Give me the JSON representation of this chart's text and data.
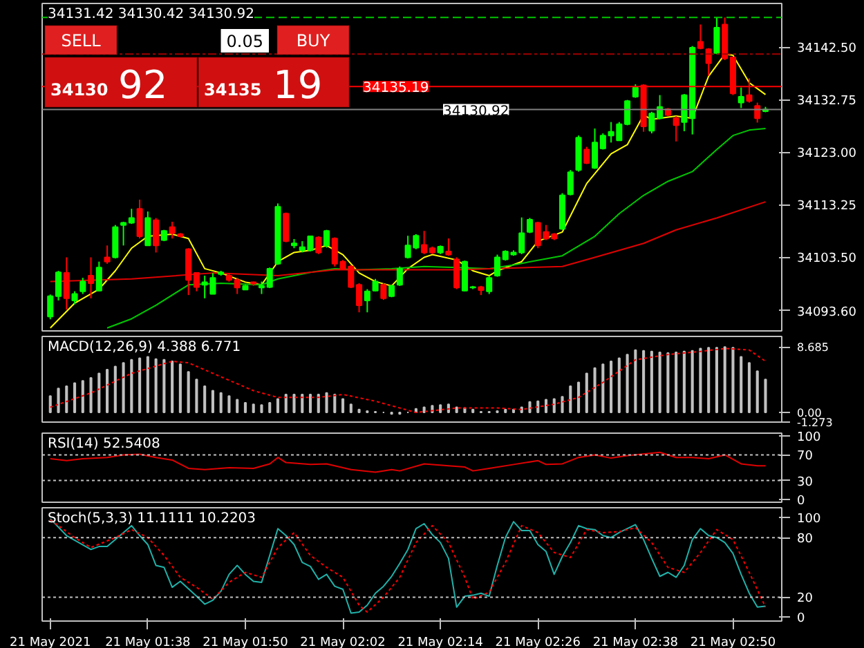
{
  "chart_data": [
    {
      "type": "candlestick",
      "title": "34131.42 34130.42 34130.92",
      "colors": [
        "#00ff00",
        "#00ff00",
        "#ff0000",
        "#00ff00",
        "#00ff00",
        "#ff0000",
        "#00ff00",
        "#ff0000",
        "#00ff00",
        "#00ff00",
        "#00ff00",
        "#ff0000",
        "#00ff00",
        "#ff0000",
        "#00ff00",
        "#ff0000",
        "#ff0000",
        "#ff0000",
        "#ff0000",
        "#00ff00",
        "#00ff00",
        "#00ff00",
        "#ff0000",
        "#ff0000",
        "#00ff00",
        "#ff0000",
        "#00ff00",
        "#00ff00",
        "#00ff00",
        "#ff0000",
        "#00ff00",
        "#00ff00",
        "#00ff00",
        "#ff0000",
        "#00ff00",
        "#ff0000",
        "#ff0000",
        "#ff0000",
        "#ff0000",
        "#00ff00",
        "#00ff00",
        "#ff0000",
        "#00ff00",
        "#00ff00",
        "#00ff00",
        "#00ff00",
        "#ff0000",
        "#ff0000",
        "#00ff00",
        "#ff0000",
        "#ff0000",
        "#00ff00",
        "#00ff00",
        "#ff0000",
        "#00ff00",
        "#00ff00",
        "#00ff00",
        "#00ff00",
        "#00ff00",
        "#00ff00",
        "#ff0000",
        "#ff0000",
        "#ff0000",
        "#00ff00",
        "#00ff00",
        "#00ff00",
        "#ff0000",
        "#00ff00",
        "#00ff00",
        "#00ff00",
        "#00ff00",
        "#00ff00",
        "#00ff00",
        "#ff0000",
        "#00ff00",
        "#00ff00",
        "#ff0000",
        "#ff0000",
        "#00ff00",
        "#00ff00",
        "#ff0000",
        "#ff0000",
        "#00ff00",
        "#ff0000",
        "#ff0000",
        "#00ff00",
        "#ff0000",
        "#ff0000",
        "#00ff00"
      ],
      "x": [
        "2021-05-21T01:26",
        "2021-05-21T01:27",
        "2021-05-21T01:28",
        "2021-05-21T01:29",
        "2021-05-21T01:30",
        "2021-05-21T01:31",
        "2021-05-21T01:32",
        "2021-05-21T01:33",
        "2021-05-21T01:34",
        "2021-05-21T01:35",
        "2021-05-21T01:36",
        "2021-05-21T01:37",
        "2021-05-21T01:38",
        "2021-05-21T01:39",
        "2021-05-21T01:40",
        "2021-05-21T01:41",
        "2021-05-21T01:42",
        "2021-05-21T01:43",
        "2021-05-21T01:44",
        "2021-05-21T01:45",
        "2021-05-21T01:46",
        "2021-05-21T01:47",
        "2021-05-21T01:48",
        "2021-05-21T01:49",
        "2021-05-21T01:50",
        "2021-05-21T01:51",
        "2021-05-21T01:52",
        "2021-05-21T01:53",
        "2021-05-21T01:54",
        "2021-05-21T01:55",
        "2021-05-21T01:56",
        "2021-05-21T01:57",
        "2021-05-21T01:58",
        "2021-05-21T01:59",
        "2021-05-21T02:00",
        "2021-05-21T02:01",
        "2021-05-21T02:02",
        "2021-05-21T02:03",
        "2021-05-21T02:04",
        "2021-05-21T02:05",
        "2021-05-21T02:06",
        "2021-05-21T02:07",
        "2021-05-21T02:08",
        "2021-05-21T02:09",
        "2021-05-21T02:10",
        "2021-05-21T02:11",
        "2021-05-21T02:12",
        "2021-05-21T02:13",
        "2021-05-21T02:14",
        "2021-05-21T02:15",
        "2021-05-21T02:16",
        "2021-05-21T02:17",
        "2021-05-21T02:18",
        "2021-05-21T02:19",
        "2021-05-21T02:20",
        "2021-05-21T02:21",
        "2021-05-21T02:22",
        "2021-05-21T02:23",
        "2021-05-21T02:24",
        "2021-05-21T02:25",
        "2021-05-21T02:26",
        "2021-05-21T02:27",
        "2021-05-21T02:28",
        "2021-05-21T02:29",
        "2021-05-21T02:30",
        "2021-05-21T02:31",
        "2021-05-21T02:32",
        "2021-05-21T02:33",
        "2021-05-21T02:34",
        "2021-05-21T02:35",
        "2021-05-21T02:36",
        "2021-05-21T02:37",
        "2021-05-21T02:38",
        "2021-05-21T02:39",
        "2021-05-21T02:40",
        "2021-05-21T02:41",
        "2021-05-21T02:42",
        "2021-05-21T02:43",
        "2021-05-21T02:44",
        "2021-05-21T02:45",
        "2021-05-21T02:46",
        "2021-05-21T02:47",
        "2021-05-21T02:48",
        "2021-05-21T02:49",
        "2021-05-21T02:50",
        "2021-05-21T02:51",
        "2021-05-21T02:52",
        "2021-05-21T02:53",
        "2021-05-21T02:54"
      ],
      "ohlc": [
        [
          34092.5,
          34096.6,
          34092.0,
          34096.3
        ],
        [
          34096.3,
          34101.0,
          34095.5,
          34100.7
        ],
        [
          34100.6,
          34103.5,
          34093.8,
          34095.9
        ],
        [
          34095.5,
          34097.2,
          34094.8,
          34096.7
        ],
        [
          34097.2,
          34099.7,
          34096.7,
          34099.0
        ],
        [
          34100.1,
          34103.5,
          34095.9,
          34098.7
        ],
        [
          34097.3,
          34102.7,
          34097.2,
          34101.6
        ],
        [
          34103.5,
          34105.7,
          34102.3,
          34102.7
        ],
        [
          34103.5,
          34109.5,
          34103.3,
          34109.1
        ],
        [
          34109.5,
          34110.1,
          34105.7,
          34109.9
        ],
        [
          34109.9,
          34112.5,
          34109.7,
          34110.8
        ],
        [
          34112.5,
          34114.2,
          34107.0,
          34107.4
        ],
        [
          34105.7,
          34112.0,
          34105.7,
          34110.8
        ],
        [
          34110.4,
          34110.8,
          34104.4,
          34105.7
        ],
        [
          34106.7,
          34108.6,
          34106.5,
          34108.4
        ],
        [
          34109.1,
          34110.1,
          34107.0,
          34108.0
        ],
        [
          34107.8,
          34108.0,
          34107.2,
          34107.4
        ],
        [
          34105.0,
          34105.2,
          34096.5,
          34099.3
        ],
        [
          34100.6,
          34100.7,
          34097.2,
          34098.0
        ],
        [
          34098.4,
          34100.1,
          34095.9,
          34098.9
        ],
        [
          34096.7,
          34100.6,
          34096.7,
          34099.7
        ],
        [
          34100.4,
          34101.0,
          34100.1,
          34100.7
        ],
        [
          34100.1,
          34100.6,
          34099.0,
          34099.3
        ],
        [
          34099.3,
          34099.7,
          34096.7,
          34097.9
        ],
        [
          34097.5,
          34098.4,
          34097.5,
          34098.2
        ],
        [
          34098.9,
          34099.0,
          34098.2,
          34098.6
        ],
        [
          34097.9,
          34099.0,
          34096.7,
          34098.2
        ],
        [
          34098.0,
          34101.6,
          34097.8,
          34101.4
        ],
        [
          34102.3,
          34113.5,
          34102.1,
          34112.9
        ],
        [
          34111.6,
          34111.8,
          34106.3,
          34106.5
        ],
        [
          34105.7,
          34106.9,
          34105.2,
          34106.1
        ],
        [
          34104.8,
          34106.5,
          34104.4,
          34105.4
        ],
        [
          34104.8,
          34107.5,
          34104.6,
          34107.4
        ],
        [
          34107.2,
          34107.4,
          34104.1,
          34104.4
        ],
        [
          34105.7,
          34108.6,
          34105.3,
          34108.4
        ],
        [
          34107.0,
          34107.2,
          34101.8,
          34102.3
        ],
        [
          34102.7,
          34103.0,
          34101.2,
          34101.4
        ],
        [
          34101.8,
          34102.1,
          34097.8,
          34098.0
        ],
        [
          34098.4,
          34098.7,
          34093.3,
          34094.6
        ],
        [
          34095.5,
          34097.6,
          34093.3,
          34097.2
        ],
        [
          34097.3,
          34099.5,
          34097.2,
          34099.0
        ],
        [
          34098.4,
          34098.7,
          34095.6,
          34095.9
        ],
        [
          34096.3,
          34098.4,
          34096.1,
          34098.2
        ],
        [
          34098.4,
          34101.8,
          34098.2,
          34101.4
        ],
        [
          34103.5,
          34107.5,
          34103.3,
          34105.7
        ],
        [
          34105.3,
          34107.8,
          34105.0,
          34107.5
        ],
        [
          34105.8,
          34108.4,
          34104.1,
          34104.4
        ],
        [
          34105.2,
          34105.5,
          34104.1,
          34104.4
        ],
        [
          34104.4,
          34105.7,
          34104.1,
          34105.5
        ],
        [
          34104.6,
          34107.0,
          34103.8,
          34104.0
        ],
        [
          34103.1,
          34103.5,
          34097.6,
          34097.9
        ],
        [
          34097.3,
          34102.9,
          34097.2,
          34102.7
        ],
        [
          34097.9,
          34098.2,
          34097.6,
          34098.0
        ],
        [
          34098.0,
          34098.2,
          34096.5,
          34097.4
        ],
        [
          34097.2,
          34100.1,
          34096.7,
          34099.7
        ],
        [
          34100.1,
          34104.0,
          34099.9,
          34103.5
        ],
        [
          34103.1,
          34104.8,
          34102.9,
          34104.6
        ],
        [
          34104.0,
          34104.8,
          34103.8,
          34104.4
        ],
        [
          34104.4,
          34110.9,
          34104.1,
          34108.0
        ],
        [
          34108.2,
          34110.8,
          34108.0,
          34110.5
        ],
        [
          34109.9,
          34110.1,
          34105.2,
          34105.7
        ],
        [
          34108.2,
          34109.5,
          34106.7,
          34107.0
        ],
        [
          34107.8,
          34108.0,
          34106.7,
          34107.0
        ],
        [
          34108.8,
          34115.4,
          34108.6,
          34115.0
        ],
        [
          34115.2,
          34119.7,
          34115.0,
          34119.3
        ],
        [
          34119.7,
          34126.1,
          34119.4,
          34125.7
        ],
        [
          34123.5,
          34124.0,
          34120.8,
          34121.0
        ],
        [
          34120.1,
          34127.4,
          34119.9,
          34124.8
        ],
        [
          34123.7,
          34126.5,
          34123.5,
          34126.1
        ],
        [
          34126.1,
          34128.6,
          34124.8,
          34126.8
        ],
        [
          34125.2,
          34128.6,
          34125.1,
          34128.2
        ],
        [
          34128.2,
          34132.7,
          34128.0,
          34132.5
        ],
        [
          34133.3,
          34135.6,
          34133.1,
          34135.0
        ],
        [
          34135.4,
          34135.6,
          34126.8,
          34127.8
        ],
        [
          34127.0,
          34130.5,
          34126.5,
          34130.2
        ],
        [
          34129.3,
          34133.6,
          34129.1,
          34131.4
        ],
        [
          34131.0,
          34131.2,
          34129.7,
          34129.9
        ],
        [
          34129.3,
          34129.7,
          34125.0,
          34128.0
        ],
        [
          34128.6,
          34133.8,
          34126.9,
          34133.6
        ],
        [
          34129.3,
          34142.7,
          34126.3,
          34142.4
        ],
        [
          34143.5,
          34146.7,
          34142.1,
          34142.3
        ],
        [
          34142.1,
          34142.3,
          34137.2,
          34139.5
        ],
        [
          34141.4,
          34148.0,
          34141.2,
          34146.1
        ],
        [
          34146.7,
          34148.0,
          34140.1,
          34140.4
        ],
        [
          34140.6,
          34140.7,
          34133.6,
          34133.9
        ],
        [
          34132.2,
          34135.0,
          34131.2,
          34133.3
        ],
        [
          34133.6,
          34136.7,
          34132.2,
          34132.5
        ],
        [
          34131.6,
          34132.2,
          34128.5,
          34129.3
        ],
        [
          34130.62,
          34131.42,
          34130.42,
          34130.92
        ]
      ],
      "series": [
        {
          "type": "line",
          "color": "#ffff00",
          "x": [
            "2021-05-21T01:26",
            "2021-05-21T01:29",
            "2021-05-21T01:32",
            "2021-05-21T01:34",
            "2021-05-21T01:36",
            "2021-05-21T01:38",
            "2021-05-21T01:41",
            "2021-05-21T01:43",
            "2021-05-21T01:45",
            "2021-05-21T01:47",
            "2021-05-21T01:50",
            "2021-05-21T01:52",
            "2021-05-21T01:54",
            "2021-05-21T01:56",
            "2021-05-21T01:58",
            "2021-05-21T02:00",
            "2021-05-21T02:02",
            "2021-05-21T02:04",
            "2021-05-21T02:06",
            "2021-05-21T02:08",
            "2021-05-21T02:10",
            "2021-05-21T02:12",
            "2021-05-21T02:13",
            "2021-05-21T02:16",
            "2021-05-21T02:18",
            "2021-05-21T02:20",
            "2021-05-21T02:21",
            "2021-05-21T02:24",
            "2021-05-21T02:26",
            "2021-05-21T02:29",
            "2021-05-21T02:31",
            "2021-05-21T02:32",
            "2021-05-21T02:35",
            "2021-05-21T02:37",
            "2021-05-21T02:39",
            "2021-05-21T02:40",
            "2021-05-21T02:43",
            "2021-05-21T02:45",
            "2021-05-21T02:47",
            "2021-05-21T02:49",
            "2021-05-21T02:50",
            "2021-05-21T02:52",
            "2021-05-21T02:54"
          ],
          "values": [
            34090.4,
            34095.0,
            34097.6,
            34101.0,
            34105.2,
            34107.4,
            34107.8,
            34107.0,
            34101.4,
            34100.6,
            34098.9,
            34098.4,
            34102.7,
            34104.4,
            34104.8,
            34105.7,
            34104.0,
            34100.6,
            34099.0,
            34098.2,
            34101.4,
            34103.5,
            34104.0,
            34103.0,
            34101.0,
            34100.1,
            34101.0,
            34102.7,
            34106.5,
            34108.2,
            34114.2,
            34117.2,
            34122.7,
            34124.4,
            34129.9,
            34129.1,
            34129.7,
            34129.3,
            34137.1,
            34141.2,
            34141.0,
            34135.9,
            34133.7
          ]
        },
        {
          "type": "line",
          "color": "#00c800",
          "x": [
            "2021-05-21T01:33",
            "2021-05-21T01:36",
            "2021-05-21T01:39",
            "2021-05-21T01:43",
            "2021-05-21T01:47",
            "2021-05-21T01:52",
            "2021-05-21T01:54",
            "2021-05-21T01:58",
            "2021-05-21T02:01",
            "2021-05-21T02:04",
            "2021-05-21T02:08",
            "2021-05-21T02:12",
            "2021-05-21T02:16",
            "2021-05-21T02:20",
            "2021-05-21T02:23",
            "2021-05-21T02:29",
            "2021-05-21T02:33",
            "2021-05-21T02:36",
            "2021-05-21T02:39",
            "2021-05-21T02:42",
            "2021-05-21T02:45",
            "2021-05-21T02:48",
            "2021-05-21T02:50",
            "2021-05-21T02:52",
            "2021-05-21T02:54"
          ],
          "values": [
            34090.4,
            34092.1,
            34094.6,
            34098.4,
            34098.7,
            34098.4,
            34099.5,
            34100.7,
            34101.4,
            34101.2,
            34101.4,
            34101.8,
            34101.6,
            34101.4,
            34102.1,
            34103.8,
            34107.4,
            34111.6,
            34115.0,
            34117.6,
            34119.4,
            34123.5,
            34126.1,
            34127.1,
            34127.4
          ]
        },
        {
          "type": "line",
          "color": "#e00000",
          "x": [
            "2021-05-21T01:26",
            "2021-05-21T01:36",
            "2021-05-21T01:46",
            "2021-05-21T01:54",
            "2021-05-21T02:01",
            "2021-05-21T02:11",
            "2021-05-21T02:16",
            "2021-05-21T02:29",
            "2021-05-21T02:33",
            "2021-05-21T02:39",
            "2021-05-21T02:43",
            "2021-05-21T02:48",
            "2021-05-21T02:54"
          ],
          "values": [
            34099.0,
            34099.5,
            34100.6,
            34100.1,
            34101.2,
            34101.2,
            34101.2,
            34101.8,
            34103.5,
            34106.1,
            34108.6,
            34110.8,
            34113.8
          ]
        }
      ],
      "xlim": [
        "2021-05-21T01:25",
        "2021-05-21T02:56"
      ],
      "ylim": [
        34089.85,
        34150.6
      ],
      "yticks": [
        {
          "value": 34093.6,
          "label": "34093.60"
        },
        {
          "value": 34103.5,
          "label": "34103.50"
        },
        34113.25,
        {
          "value": 34123.0,
          "label": "34123.00"
        },
        34132.75,
        {
          "value": 34142.5,
          "label": "34142.50"
        }
      ],
      "ref_lines": [
        {
          "axis": "y",
          "value": 34148.0,
          "label": null,
          "color": "#00c800",
          "line_style": "dashed"
        },
        {
          "axis": "y",
          "value": 34141.2,
          "label": null,
          "color": "#a00000",
          "line_style": "dashdot"
        },
        {
          "axis": "y",
          "value": 34135.19,
          "label": "34135.19",
          "color": "#ff0000",
          "line_style": "solid"
        },
        {
          "axis": "y",
          "value": 34130.92,
          "label": "34130.92",
          "color": "#808080",
          "line_style": "solid"
        }
      ],
      "annotations": [
        "SELL",
        "0.05",
        "BUY",
        "34130",
        "92",
        "34135",
        "19"
      ],
      "tick_labels": "y",
      "grid": false
    },
    {
      "type": "bar",
      "title": "MACD(12,26,9) 4.388 6.771",
      "x": [
        "2021-05-21T01:26",
        "2021-05-21T01:27",
        "2021-05-21T01:28",
        "2021-05-21T01:29",
        "2021-05-21T01:30",
        "2021-05-21T01:31",
        "2021-05-21T01:32",
        "2021-05-21T01:33",
        "2021-05-21T01:34",
        "2021-05-21T01:35",
        "2021-05-21T01:36",
        "2021-05-21T01:37",
        "2021-05-21T01:38",
        "2021-05-21T01:39",
        "2021-05-21T01:40",
        "2021-05-21T01:41",
        "2021-05-21T01:42",
        "2021-05-21T01:43",
        "2021-05-21T01:44",
        "2021-05-21T01:45",
        "2021-05-21T01:46",
        "2021-05-21T01:47",
        "2021-05-21T01:48",
        "2021-05-21T01:49",
        "2021-05-21T01:50",
        "2021-05-21T01:51",
        "2021-05-21T01:52",
        "2021-05-21T01:53",
        "2021-05-21T01:54",
        "2021-05-21T01:55",
        "2021-05-21T01:56",
        "2021-05-21T01:57",
        "2021-05-21T01:58",
        "2021-05-21T01:59",
        "2021-05-21T02:00",
        "2021-05-21T02:01",
        "2021-05-21T02:02",
        "2021-05-21T02:03",
        "2021-05-21T02:04",
        "2021-05-21T02:05",
        "2021-05-21T02:06",
        "2021-05-21T02:07",
        "2021-05-21T02:08",
        "2021-05-21T02:09",
        "2021-05-21T02:10",
        "2021-05-21T02:11",
        "2021-05-21T02:12",
        "2021-05-21T02:13",
        "2021-05-21T02:14",
        "2021-05-21T02:15",
        "2021-05-21T02:16",
        "2021-05-21T02:17",
        "2021-05-21T02:18",
        "2021-05-21T02:19",
        "2021-05-21T02:20",
        "2021-05-21T02:21",
        "2021-05-21T02:22",
        "2021-05-21T02:23",
        "2021-05-21T02:24",
        "2021-05-21T02:25",
        "2021-05-21T02:26",
        "2021-05-21T02:27",
        "2021-05-21T02:28",
        "2021-05-21T02:29",
        "2021-05-21T02:30",
        "2021-05-21T02:31",
        "2021-05-21T02:32",
        "2021-05-21T02:33",
        "2021-05-21T02:34",
        "2021-05-21T02:35",
        "2021-05-21T02:36",
        "2021-05-21T02:37",
        "2021-05-21T02:38",
        "2021-05-21T02:39",
        "2021-05-21T02:40",
        "2021-05-21T02:41",
        "2021-05-21T02:42",
        "2021-05-21T02:43",
        "2021-05-21T02:44",
        "2021-05-21T02:45",
        "2021-05-21T02:46",
        "2021-05-21T02:47",
        "2021-05-21T02:48",
        "2021-05-21T02:49",
        "2021-05-21T02:50",
        "2021-05-21T02:51",
        "2021-05-21T02:52",
        "2021-05-21T02:53",
        "2021-05-21T02:54"
      ],
      "series": [
        {
          "type": "bar",
          "color": "#c0c0c0",
          "values": [
            2.2,
            3.2,
            3.5,
            3.9,
            4.2,
            4.6,
            5.2,
            5.7,
            6.1,
            6.6,
            7.0,
            7.2,
            7.4,
            7.1,
            7.0,
            6.8,
            6.4,
            5.4,
            4.4,
            3.5,
            2.9,
            2.6,
            2.2,
            1.7,
            1.3,
            1.1,
            1.0,
            1.3,
            1.8,
            2.4,
            2.4,
            2.4,
            2.4,
            2.4,
            2.6,
            2.4,
            1.8,
            1.1,
            0.4,
            0.2,
            0.1,
            0.0,
            -0.2,
            -0.2,
            0.0,
            0.5,
            0.7,
            0.9,
            1.0,
            1.1,
            0.7,
            0.6,
            0.4,
            0.1,
            0.1,
            0.2,
            0.4,
            0.4,
            0.7,
            1.4,
            1.5,
            1.7,
            1.8,
            2.1,
            3.5,
            4.0,
            5.2,
            5.9,
            6.4,
            6.8,
            7.2,
            7.7,
            8.3,
            8.2,
            8.1,
            8.0,
            7.9,
            8.0,
            8.1,
            8.2,
            8.5,
            8.6,
            8.6,
            8.7,
            8.6,
            7.4,
            6.6,
            5.5,
            4.4
          ]
        },
        {
          "type": "line",
          "color": "#ff0000",
          "line_style": "dotted",
          "x": [
            "2021-05-21T01:26",
            "2021-05-21T01:31",
            "2021-05-21T01:36",
            "2021-05-21T01:41",
            "2021-05-21T01:43",
            "2021-05-21T01:46",
            "2021-05-21T01:51",
            "2021-05-21T01:54",
            "2021-05-21T01:59",
            "2021-05-21T02:02",
            "2021-05-21T02:06",
            "2021-05-21T02:11",
            "2021-05-21T02:16",
            "2021-05-21T02:21",
            "2021-05-21T02:24",
            "2021-05-21T02:28",
            "2021-05-21T02:31",
            "2021-05-21T02:34",
            "2021-05-21T02:38",
            "2021-05-21T02:42",
            "2021-05-21T02:46",
            "2021-05-21T02:49",
            "2021-05-21T02:52",
            "2021-05-21T02:54"
          ],
          "values": [
            0.7,
            2.6,
            5.2,
            6.8,
            6.6,
            5.2,
            2.9,
            2.0,
            2.0,
            2.4,
            1.5,
            0.0,
            0.6,
            0.6,
            0.4,
            1.1,
            2.0,
            4.0,
            7.0,
            7.7,
            8.1,
            8.5,
            8.3,
            6.8
          ]
        }
      ],
      "xlim": [
        "2021-05-21T01:25",
        "2021-05-21T02:56"
      ],
      "ylim": [
        -1.273,
        10.1
      ],
      "yticks": [
        8.685,
        {
          "value": 0,
          "label": "0.00"
        },
        -1.273
      ],
      "tick_labels": "y",
      "grid": false
    },
    {
      "type": "line",
      "title": "RSI(14) 52.5408",
      "series": [
        {
          "color": "#e00000",
          "x": [
            "2021-05-21T01:26",
            "2021-05-21T01:28",
            "2021-05-21T01:30",
            "2021-05-21T01:33",
            "2021-05-21T01:35",
            "2021-05-21T01:37",
            "2021-05-21T01:39",
            "2021-05-21T01:41",
            "2021-05-21T01:43",
            "2021-05-21T01:45",
            "2021-05-21T01:48",
            "2021-05-21T01:51",
            "2021-05-21T01:53",
            "2021-05-21T01:54",
            "2021-05-21T01:55",
            "2021-05-21T01:58",
            "2021-05-21T02:00",
            "2021-05-21T02:03",
            "2021-05-21T02:06",
            "2021-05-21T02:08",
            "2021-05-21T02:09",
            "2021-05-21T02:12",
            "2021-05-21T02:15",
            "2021-05-21T02:17",
            "2021-05-21T02:18",
            "2021-05-21T02:20",
            "2021-05-21T02:23",
            "2021-05-21T02:26",
            "2021-05-21T02:27",
            "2021-05-21T02:29",
            "2021-05-21T02:31",
            "2021-05-21T02:33",
            "2021-05-21T02:35",
            "2021-05-21T02:37",
            "2021-05-21T02:41",
            "2021-05-21T02:43",
            "2021-05-21T02:45",
            "2021-05-21T02:47",
            "2021-05-21T02:49",
            "2021-05-21T02:51",
            "2021-05-21T02:53",
            "2021-05-21T02:54"
          ],
          "values": [
            64,
            61,
            64,
            66,
            70,
            71,
            66,
            62,
            49,
            47,
            50,
            49,
            56,
            66,
            58,
            55,
            56,
            47,
            43,
            47,
            45,
            56,
            53,
            51,
            45,
            49,
            55,
            61,
            55,
            56,
            66,
            70,
            65,
            69,
            74,
            66,
            66,
            64,
            70,
            56,
            53,
            53
          ]
        }
      ],
      "xlim": [
        "2021-05-21T01:25",
        "2021-05-21T02:56"
      ],
      "ylim": [
        -4,
        104
      ],
      "yticks": [
        100,
        70,
        30,
        0
      ],
      "ref_lines": [
        {
          "axis": "y",
          "value": 70,
          "label": null,
          "color": "#c0c0c0",
          "line_style": "dotted"
        },
        {
          "axis": "y",
          "value": 30,
          "label": null,
          "color": "#c0c0c0",
          "line_style": "dotted"
        }
      ],
      "tick_labels": "y",
      "grid": false
    },
    {
      "type": "line",
      "title": "Stoch(5,3,3) 11.1111 10.2203",
      "series": [
        {
          "color": "#20b2aa",
          "x": [
            "2021-05-21T01:26",
            "2021-05-21T01:28",
            "2021-05-21T01:31",
            "2021-05-21T01:32",
            "2021-05-21T01:33",
            "2021-05-21T01:35",
            "2021-05-21T01:36",
            "2021-05-21T01:37",
            "2021-05-21T01:38",
            "2021-05-21T01:39",
            "2021-05-21T01:40",
            "2021-05-21T01:41",
            "2021-05-21T01:42",
            "2021-05-21T01:44",
            "2021-05-21T01:45",
            "2021-05-21T01:46",
            "2021-05-21T01:47",
            "2021-05-21T01:48",
            "2021-05-21T01:49",
            "2021-05-21T01:50",
            "2021-05-21T01:51",
            "2021-05-21T01:52",
            "2021-05-21T01:54",
            "2021-05-21T01:55",
            "2021-05-21T01:56",
            "2021-05-21T01:57",
            "2021-05-21T01:58",
            "2021-05-21T01:59",
            "2021-05-21T02:00",
            "2021-05-21T02:01",
            "2021-05-21T02:02",
            "2021-05-21T02:03",
            "2021-05-21T02:04",
            "2021-05-21T02:05",
            "2021-05-21T02:06",
            "2021-05-21T02:07",
            "2021-05-21T02:08",
            "2021-05-21T02:09",
            "2021-05-21T02:10",
            "2021-05-21T02:11",
            "2021-05-21T02:12",
            "2021-05-21T02:13",
            "2021-05-21T02:14",
            "2021-05-21T02:15",
            "2021-05-21T02:16",
            "2021-05-21T02:17",
            "2021-05-21T02:18",
            "2021-05-21T02:19",
            "2021-05-21T02:20",
            "2021-05-21T02:21",
            "2021-05-21T02:22",
            "2021-05-21T02:23",
            "2021-05-21T02:24",
            "2021-05-21T02:25",
            "2021-05-21T02:26",
            "2021-05-21T02:27",
            "2021-05-21T02:28",
            "2021-05-21T02:29",
            "2021-05-21T02:30",
            "2021-05-21T02:31",
            "2021-05-21T02:32",
            "2021-05-21T02:33",
            "2021-05-21T02:34",
            "2021-05-21T02:35",
            "2021-05-21T02:36",
            "2021-05-21T02:37",
            "2021-05-21T02:38",
            "2021-05-21T02:39",
            "2021-05-21T02:40",
            "2021-05-21T02:41",
            "2021-05-21T02:42",
            "2021-05-21T02:43",
            "2021-05-21T02:44",
            "2021-05-21T02:45",
            "2021-05-21T02:46",
            "2021-05-21T02:47",
            "2021-05-21T02:48",
            "2021-05-21T02:49",
            "2021-05-21T02:50",
            "2021-05-21T02:51",
            "2021-05-21T02:52",
            "2021-05-21T02:53",
            "2021-05-21T02:54"
          ],
          "values": [
            99,
            82,
            68,
            71,
            71,
            85,
            92,
            82,
            73,
            52,
            50,
            30,
            36,
            21,
            13,
            17,
            26,
            43,
            52,
            43,
            36,
            35,
            89,
            82,
            73,
            55,
            51,
            38,
            43,
            31,
            28,
            4,
            5,
            12,
            24,
            31,
            41,
            54,
            68,
            89,
            94,
            83,
            75,
            59,
            10,
            21,
            22,
            24,
            21,
            52,
            80,
            96,
            87,
            87,
            73,
            66,
            43,
            61,
            75,
            92,
            89,
            88,
            82,
            80,
            85,
            89,
            93,
            78,
            59,
            41,
            45,
            40,
            52,
            78,
            89,
            82,
            80,
            75,
            64,
            43,
            24,
            10,
            11
          ]
        },
        {
          "color": "#ff0000",
          "line_style": "dotted",
          "x": [
            "2021-05-21T01:26",
            "2021-05-21T01:29",
            "2021-05-21T01:31",
            "2021-05-21T01:34",
            "2021-05-21T01:36",
            "2021-05-21T01:38",
            "2021-05-21T01:40",
            "2021-05-21T01:42",
            "2021-05-21T01:44",
            "2021-05-21T01:46",
            "2021-05-21T01:48",
            "2021-05-21T01:50",
            "2021-05-21T01:52",
            "2021-05-21T01:54",
            "2021-05-21T01:56",
            "2021-05-21T01:58",
            "2021-05-21T02:00",
            "2021-05-21T02:02",
            "2021-05-21T02:04",
            "2021-05-21T02:05",
            "2021-05-21T02:07",
            "2021-05-21T02:09",
            "2021-05-21T02:11",
            "2021-05-21T02:13",
            "2021-05-21T02:15",
            "2021-05-21T02:17",
            "2021-05-21T02:18",
            "2021-05-21T02:20",
            "2021-05-21T02:22",
            "2021-05-21T02:24",
            "2021-05-21T02:26",
            "2021-05-21T02:28",
            "2021-05-21T02:30",
            "2021-05-21T02:32",
            "2021-05-21T02:34",
            "2021-05-21T02:36",
            "2021-05-21T02:38",
            "2021-05-21T02:40",
            "2021-05-21T02:42",
            "2021-05-21T02:44",
            "2021-05-21T02:46",
            "2021-05-21T02:48",
            "2021-05-21T02:50",
            "2021-05-21T02:52",
            "2021-05-21T02:54"
          ],
          "values": [
            98,
            80,
            70,
            80,
            88,
            80,
            62,
            40,
            30,
            18,
            35,
            45,
            40,
            70,
            85,
            62,
            50,
            40,
            12,
            5,
            20,
            40,
            75,
            92,
            75,
            40,
            18,
            25,
            55,
            92,
            85,
            65,
            60,
            88,
            85,
            86,
            90,
            75,
            50,
            45,
            65,
            88,
            78,
            45,
            10
          ]
        }
      ],
      "xlim": [
        "2021-05-21T01:25",
        "2021-05-21T02:56"
      ],
      "ylim": [
        -4,
        110
      ],
      "yticks": [
        100,
        80,
        20,
        0
      ],
      "xticks": [
        {
          "value": "2021-05-21T01:26",
          "label": "21 May 2021"
        },
        {
          "value": "2021-05-21T01:38",
          "label": "21 May 01:38"
        },
        {
          "value": "2021-05-21T01:50",
          "label": "21 May 01:50"
        },
        {
          "value": "2021-05-21T02:02",
          "label": "21 May 02:02"
        },
        {
          "value": "2021-05-21T02:14",
          "label": "21 May 02:14"
        },
        {
          "value": "2021-05-21T02:26",
          "label": "21 May 02:26"
        },
        {
          "value": "2021-05-21T02:38",
          "label": "21 May 02:38"
        },
        {
          "value": "2021-05-21T02:50",
          "label": "21 May 02:50"
        }
      ],
      "ref_lines": [
        {
          "axis": "y",
          "value": 80,
          "label": null,
          "color": "#c0c0c0",
          "line_style": "dotted"
        },
        {
          "axis": "y",
          "value": 20,
          "label": null,
          "color": "#c0c0c0",
          "line_style": "dotted"
        }
      ],
      "grid": false
    }
  ]
}
